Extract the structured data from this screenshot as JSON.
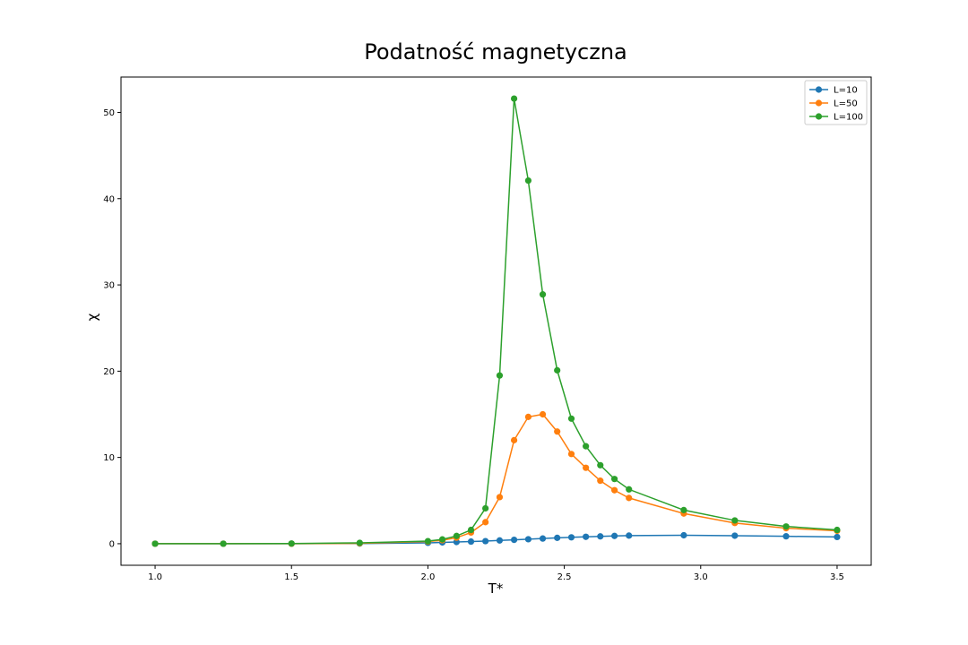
{
  "chart_data": {
    "type": "line",
    "title": "Podatność magnetyczna",
    "xlabel": "T*",
    "ylabel": "χ",
    "xlim": [
      0.875,
      3.625
    ],
    "ylim": [
      -2.5,
      54.1
    ],
    "xticks": [
      "1.0",
      "1.5",
      "2.0",
      "2.5",
      "3.0",
      "3.5"
    ],
    "yticks": [
      "0",
      "10",
      "20",
      "30",
      "40",
      "50"
    ],
    "grid": false,
    "legend_position": "top-right",
    "series": [
      {
        "name": "L=10",
        "color": "#1f77b4",
        "x": [
          1.0,
          1.25,
          1.5,
          1.75,
          2.0,
          2.053,
          2.105,
          2.158,
          2.211,
          2.263,
          2.316,
          2.368,
          2.421,
          2.474,
          2.526,
          2.579,
          2.632,
          2.684,
          2.737,
          2.938,
          3.125,
          3.313,
          3.5
        ],
        "y": [
          0.0,
          0.0,
          0.0,
          0.02,
          0.1,
          0.15,
          0.2,
          0.25,
          0.3,
          0.38,
          0.45,
          0.52,
          0.6,
          0.68,
          0.74,
          0.8,
          0.85,
          0.9,
          0.94,
          0.98,
          0.93,
          0.86,
          0.78
        ]
      },
      {
        "name": "L=50",
        "color": "#ff7f0e",
        "x": [
          1.0,
          1.25,
          1.5,
          1.75,
          2.0,
          2.053,
          2.105,
          2.158,
          2.211,
          2.263,
          2.316,
          2.368,
          2.421,
          2.474,
          2.526,
          2.579,
          2.632,
          2.684,
          2.737,
          2.938,
          3.125,
          3.313,
          3.5
        ],
        "y": [
          0.0,
          0.0,
          0.0,
          0.05,
          0.25,
          0.4,
          0.7,
          1.3,
          2.5,
          5.4,
          12.0,
          14.7,
          15.0,
          13.0,
          10.4,
          8.8,
          7.3,
          6.2,
          5.3,
          3.5,
          2.4,
          1.8,
          1.5
        ]
      },
      {
        "name": "L=100",
        "color": "#2ca02c",
        "x": [
          1.0,
          1.25,
          1.5,
          1.75,
          2.0,
          2.053,
          2.105,
          2.158,
          2.211,
          2.263,
          2.316,
          2.368,
          2.421,
          2.474,
          2.526,
          2.579,
          2.632,
          2.684,
          2.737,
          2.938,
          3.125,
          3.313,
          3.5
        ],
        "y": [
          0.0,
          0.0,
          0.02,
          0.1,
          0.3,
          0.5,
          0.9,
          1.6,
          4.1,
          19.5,
          51.6,
          42.1,
          28.9,
          20.1,
          14.5,
          11.3,
          9.1,
          7.5,
          6.3,
          3.9,
          2.7,
          2.0,
          1.6
        ]
      }
    ]
  }
}
